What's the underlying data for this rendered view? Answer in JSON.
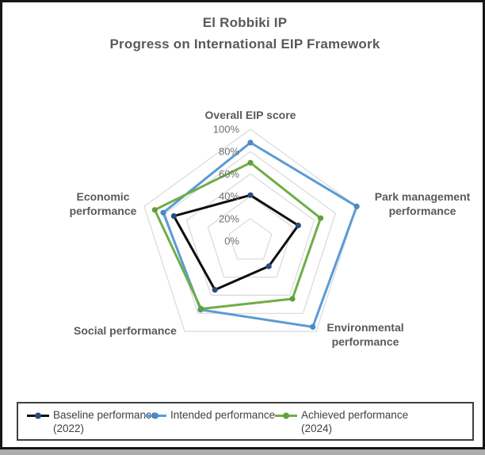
{
  "title": {
    "line1": "El Robbiki IP",
    "line2": "Progress on International EIP Framework"
  },
  "chart_data": {
    "type": "radar",
    "categories": [
      "Overall EIP score",
      "Park management performance",
      "Environmental performance",
      "Social performance",
      "Economic performance"
    ],
    "axis_range": [
      0,
      100
    ],
    "grid_levels": [
      20,
      40,
      60,
      80,
      100
    ],
    "tick_labels": [
      "0%",
      "20%",
      "40%",
      "60%",
      "80%",
      "100%"
    ],
    "grid_color": "#d9d9d9",
    "legend_position": "bottom",
    "series": [
      {
        "name": "Baseline performance (2022)",
        "line_color": "#0d0d0d",
        "marker_color": "#2a4b7c",
        "values": [
          41,
          45,
          28,
          54,
          72
        ]
      },
      {
        "name": "Intended performance",
        "line_color": "#5b9bd5",
        "marker_color": "#4a88c6",
        "values": [
          88,
          100,
          95,
          76,
          82
        ]
      },
      {
        "name": "Achieved performance (2024)",
        "line_color": "#70ad47",
        "marker_color": "#62a03a",
        "values": [
          70,
          66,
          64,
          75,
          90
        ]
      }
    ]
  },
  "legend": {
    "items": [
      {
        "label": "Baseline performance (2022)"
      },
      {
        "label": "Intended performance"
      },
      {
        "label": "Achieved performance (2024)"
      }
    ]
  }
}
